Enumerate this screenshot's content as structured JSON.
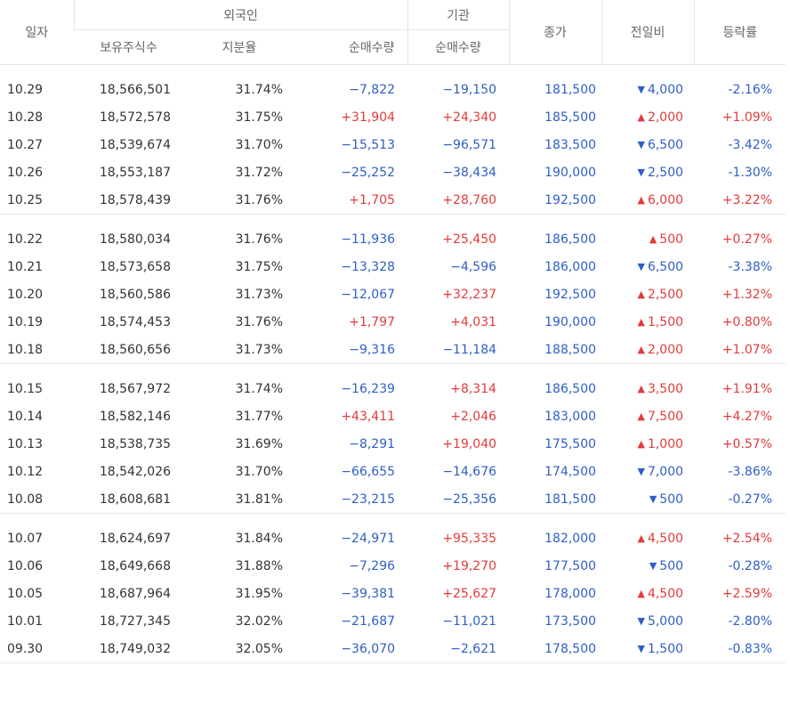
{
  "headers": {
    "date": "일자",
    "foreign": "외국인",
    "institution": "기관",
    "foreign_holdings": "보유주식수",
    "foreign_ratio": "지분율",
    "foreign_net": "순매수량",
    "inst_net": "순매수량",
    "close": "종가",
    "change": "전일비",
    "rate": "등락률"
  },
  "colors": {
    "up": "#e23b3b",
    "down": "#2e5fc5"
  },
  "groups": [
    [
      {
        "date": "10.29",
        "hold": "18,566,501",
        "ratio": "31.74%",
        "fnet": "−7,822",
        "fdir": "down",
        "inet": "−19,150",
        "idir": "down",
        "close": "181,500",
        "chg": "4,000",
        "cdir": "down",
        "rate": "-2.16%"
      },
      {
        "date": "10.28",
        "hold": "18,572,578",
        "ratio": "31.75%",
        "fnet": "+31,904",
        "fdir": "up",
        "inet": "+24,340",
        "idir": "up",
        "close": "185,500",
        "chg": "2,000",
        "cdir": "up",
        "rate": "+1.09%"
      },
      {
        "date": "10.27",
        "hold": "18,539,674",
        "ratio": "31.70%",
        "fnet": "−15,513",
        "fdir": "down",
        "inet": "−96,571",
        "idir": "down",
        "close": "183,500",
        "chg": "6,500",
        "cdir": "down",
        "rate": "-3.42%"
      },
      {
        "date": "10.26",
        "hold": "18,553,187",
        "ratio": "31.72%",
        "fnet": "−25,252",
        "fdir": "down",
        "inet": "−38,434",
        "idir": "down",
        "close": "190,000",
        "chg": "2,500",
        "cdir": "down",
        "rate": "-1.30%"
      },
      {
        "date": "10.25",
        "hold": "18,578,439",
        "ratio": "31.76%",
        "fnet": "+1,705",
        "fdir": "up",
        "inet": "+28,760",
        "idir": "up",
        "close": "192,500",
        "chg": "6,000",
        "cdir": "up",
        "rate": "+3.22%"
      }
    ],
    [
      {
        "date": "10.22",
        "hold": "18,580,034",
        "ratio": "31.76%",
        "fnet": "−11,936",
        "fdir": "down",
        "inet": "+25,450",
        "idir": "up",
        "close": "186,500",
        "chg": "500",
        "cdir": "up",
        "rate": "+0.27%"
      },
      {
        "date": "10.21",
        "hold": "18,573,658",
        "ratio": "31.75%",
        "fnet": "−13,328",
        "fdir": "down",
        "inet": "−4,596",
        "idir": "down",
        "close": "186,000",
        "chg": "6,500",
        "cdir": "down",
        "rate": "-3.38%"
      },
      {
        "date": "10.20",
        "hold": "18,560,586",
        "ratio": "31.73%",
        "fnet": "−12,067",
        "fdir": "down",
        "inet": "+32,237",
        "idir": "up",
        "close": "192,500",
        "chg": "2,500",
        "cdir": "up",
        "rate": "+1.32%"
      },
      {
        "date": "10.19",
        "hold": "18,574,453",
        "ratio": "31.76%",
        "fnet": "+1,797",
        "fdir": "up",
        "inet": "+4,031",
        "idir": "up",
        "close": "190,000",
        "chg": "1,500",
        "cdir": "up",
        "rate": "+0.80%"
      },
      {
        "date": "10.18",
        "hold": "18,560,656",
        "ratio": "31.73%",
        "fnet": "−9,316",
        "fdir": "down",
        "inet": "−11,184",
        "idir": "down",
        "close": "188,500",
        "chg": "2,000",
        "cdir": "up",
        "rate": "+1.07%"
      }
    ],
    [
      {
        "date": "10.15",
        "hold": "18,567,972",
        "ratio": "31.74%",
        "fnet": "−16,239",
        "fdir": "down",
        "inet": "+8,314",
        "idir": "up",
        "close": "186,500",
        "chg": "3,500",
        "cdir": "up",
        "rate": "+1.91%"
      },
      {
        "date": "10.14",
        "hold": "18,582,146",
        "ratio": "31.77%",
        "fnet": "+43,411",
        "fdir": "up",
        "inet": "+2,046",
        "idir": "up",
        "close": "183,000",
        "chg": "7,500",
        "cdir": "up",
        "rate": "+4.27%"
      },
      {
        "date": "10.13",
        "hold": "18,538,735",
        "ratio": "31.69%",
        "fnet": "−8,291",
        "fdir": "down",
        "inet": "+19,040",
        "idir": "up",
        "close": "175,500",
        "chg": "1,000",
        "cdir": "up",
        "rate": "+0.57%"
      },
      {
        "date": "10.12",
        "hold": "18,542,026",
        "ratio": "31.70%",
        "fnet": "−66,655",
        "fdir": "down",
        "inet": "−14,676",
        "idir": "down",
        "close": "174,500",
        "chg": "7,000",
        "cdir": "down",
        "rate": "-3.86%"
      },
      {
        "date": "10.08",
        "hold": "18,608,681",
        "ratio": "31.81%",
        "fnet": "−23,215",
        "fdir": "down",
        "inet": "−25,356",
        "idir": "down",
        "close": "181,500",
        "chg": "500",
        "cdir": "down",
        "rate": "-0.27%"
      }
    ],
    [
      {
        "date": "10.07",
        "hold": "18,624,697",
        "ratio": "31.84%",
        "fnet": "−24,971",
        "fdir": "down",
        "inet": "+95,335",
        "idir": "up",
        "close": "182,000",
        "chg": "4,500",
        "cdir": "up",
        "rate": "+2.54%"
      },
      {
        "date": "10.06",
        "hold": "18,649,668",
        "ratio": "31.88%",
        "fnet": "−7,296",
        "fdir": "down",
        "inet": "+19,270",
        "idir": "up",
        "close": "177,500",
        "chg": "500",
        "cdir": "down",
        "rate": "-0.28%"
      },
      {
        "date": "10.05",
        "hold": "18,687,964",
        "ratio": "31.95%",
        "fnet": "−39,381",
        "fdir": "down",
        "inet": "+25,627",
        "idir": "up",
        "close": "178,000",
        "chg": "4,500",
        "cdir": "up",
        "rate": "+2.59%"
      },
      {
        "date": "10.01",
        "hold": "18,727,345",
        "ratio": "32.02%",
        "fnet": "−21,687",
        "fdir": "down",
        "inet": "−11,021",
        "idir": "down",
        "close": "173,500",
        "chg": "5,000",
        "cdir": "down",
        "rate": "-2.80%"
      },
      {
        "date": "09.30",
        "hold": "18,749,032",
        "ratio": "32.05%",
        "fnet": "−36,070",
        "fdir": "down",
        "inet": "−2,621",
        "idir": "down",
        "close": "178,500",
        "chg": "1,500",
        "cdir": "down",
        "rate": "-0.83%"
      }
    ]
  ]
}
